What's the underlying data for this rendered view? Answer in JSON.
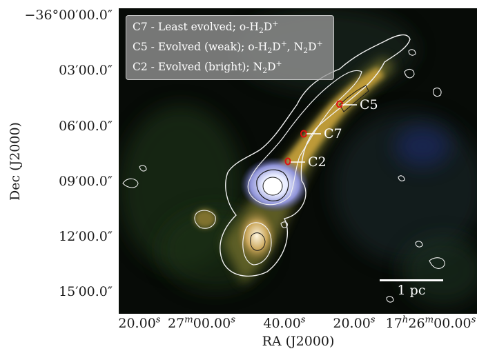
{
  "axes": {
    "xlabel": "RA (J2000)",
    "ylabel": "Dec (J2000)",
    "xticks": [
      {
        "main": "20.00",
        "sup": "s"
      },
      {
        "main": "27",
        "sup": "m",
        "rest": "00.00",
        "sup2": "s"
      },
      {
        "main": "40.00",
        "sup": "s"
      },
      {
        "main": "20.00",
        "sup": "s"
      },
      {
        "main": "17",
        "sup": "h",
        "rest": "26",
        "sup2": "m",
        "rest2": "00.00",
        "sup3": "s"
      }
    ],
    "yticks": [
      "−36°00′00.0″",
      "03′00.0″",
      "06′00.0″",
      "09′00.0″",
      "12′00.0″",
      "15′00.0″"
    ]
  },
  "legend": [
    {
      "text": "C7 - Least evolved; o-H",
      "sub": "2",
      "text2": "D",
      "sup": "+"
    },
    {
      "text": "C5 - Evolved (weak); o-H",
      "sub": "2",
      "text2": "D",
      "sup": "+",
      "text3": ", N",
      "sub2": "2",
      "text4": "D",
      "sup2": "+"
    },
    {
      "text": "C2 - Evolved (bright); N",
      "sub": "2",
      "text2": "D",
      "sup": "+"
    }
  ],
  "cores": [
    {
      "label": "C5"
    },
    {
      "label": "C7"
    },
    {
      "label": "C2"
    }
  ],
  "scalebar": {
    "label": "1 pc"
  },
  "colors": {
    "core_marker": "#e01010",
    "contour": "#f0f0f0",
    "filament": "#c9a23a"
  }
}
